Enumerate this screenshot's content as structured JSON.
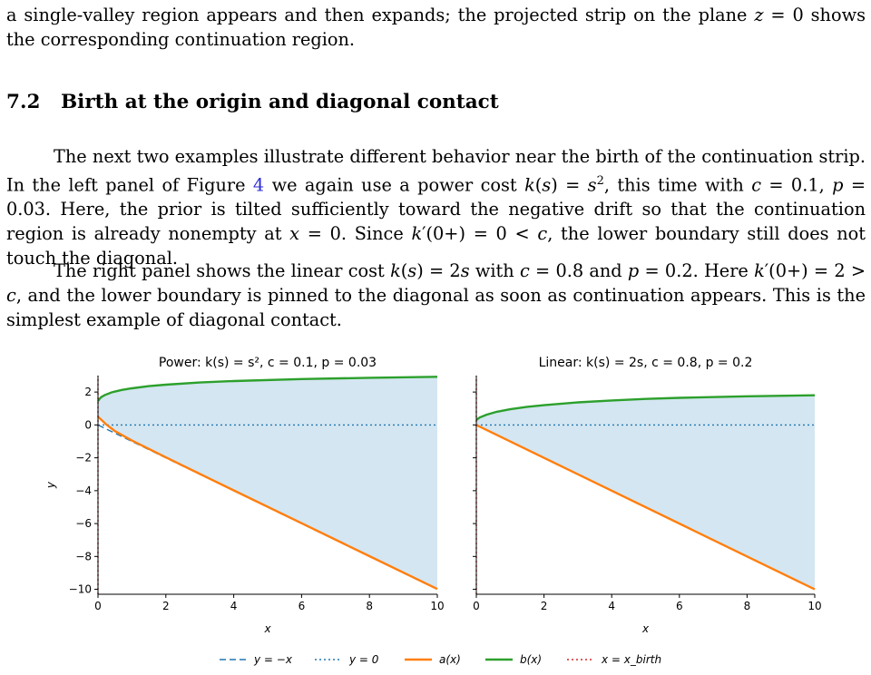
{
  "text": {
    "intro": "a single-valley region appears and then expands; the projected strip on the plane z = 0 shows the corresponding continuation region.",
    "section_number": "7.2",
    "section_title": "Birth at the origin and diagonal contact",
    "p1": "The next two examples illustrate different behavior near the birth of the continuation strip. In the left panel of Figure 4 we again use a power cost k(s) = s², this time with c = 0.1, p = 0.03. Here, the prior is tilted sufficiently toward the negative drift so that the continuation region is already nonempty at x = 0. Since k′(0+) = 0 < c, the lower boundary still does not touch the diagonal.",
    "p2": "The right panel shows the linear cost k(s) = 2s with c = 0.8 and p = 0.2. Here k′(0+) = 2 > c, and the lower boundary is pinned to the diagonal as soon as continuation appears. This is the simplest example of diagonal contact."
  },
  "chart_data": [
    {
      "type": "line",
      "title": "Power: k(s) = s², c = 0.1, p = 0.03",
      "xlabel": "x",
      "ylabel": "y",
      "xlim": [
        0,
        10
      ],
      "ylim": [
        -10.3,
        3.0
      ],
      "xticks": [
        0,
        2,
        4,
        6,
        8,
        10
      ],
      "yticks": [
        2,
        0,
        -2,
        -4,
        -6,
        -8,
        -10
      ],
      "shaded_region": "between a(x) and b(x)",
      "series": [
        {
          "name": "y = −x",
          "style": "dashed",
          "color": "#1f77b4",
          "x": [
            0,
            10
          ],
          "y": [
            0,
            -10
          ]
        },
        {
          "name": "y = 0",
          "style": "dotted",
          "color": "#1f77b4",
          "x": [
            0,
            10
          ],
          "y": [
            0,
            0
          ]
        },
        {
          "name": "a(x)",
          "style": "solid",
          "color": "#ff7f0e",
          "x": [
            0,
            0.25,
            0.5,
            1,
            2,
            4,
            6,
            8,
            10
          ],
          "y": [
            0.5,
            0.02,
            -0.38,
            -0.95,
            -1.97,
            -3.98,
            -5.98,
            -7.98,
            -9.98
          ]
        },
        {
          "name": "b(x)",
          "style": "solid",
          "color": "#2ca02c",
          "x": [
            0,
            0.05,
            0.1,
            0.2,
            0.4,
            0.7,
            1,
            1.5,
            2,
            3,
            4,
            6,
            8,
            10
          ],
          "y": [
            1.45,
            1.6,
            1.7,
            1.82,
            1.98,
            2.13,
            2.23,
            2.36,
            2.45,
            2.58,
            2.67,
            2.79,
            2.87,
            2.93
          ]
        },
        {
          "name": "x = x_birth",
          "style": "dotted",
          "color": "#d62728",
          "x": [
            0,
            0
          ],
          "y": [
            -10.3,
            3.0
          ]
        }
      ]
    },
    {
      "type": "line",
      "title": "Linear: k(s) = 2s, c = 0.8, p = 0.2",
      "xlabel": "x",
      "ylabel": "",
      "xlim": [
        0,
        10
      ],
      "ylim": [
        -10.3,
        3.0
      ],
      "xticks": [
        0,
        2,
        4,
        6,
        8,
        10
      ],
      "yticks": [
        2,
        0,
        -2,
        -4,
        -6,
        -8,
        -10
      ],
      "shaded_region": "between a(x) and b(x)",
      "series": [
        {
          "name": "y = −x",
          "style": "dashed",
          "color": "#1f77b4",
          "x": [
            0,
            10
          ],
          "y": [
            0,
            -10
          ]
        },
        {
          "name": "y = 0",
          "style": "dotted",
          "color": "#1f77b4",
          "x": [
            0,
            10
          ],
          "y": [
            0,
            0
          ]
        },
        {
          "name": "a(x)",
          "style": "solid",
          "color": "#ff7f0e",
          "x": [
            0,
            10
          ],
          "y": [
            0,
            -10
          ]
        },
        {
          "name": "b(x)",
          "style": "solid",
          "color": "#2ca02c",
          "x": [
            0,
            0.1,
            0.3,
            0.6,
            1,
            1.5,
            2,
            3,
            4,
            5,
            6,
            8,
            10
          ],
          "y": [
            0.3,
            0.45,
            0.62,
            0.8,
            0.95,
            1.1,
            1.2,
            1.37,
            1.49,
            1.58,
            1.65,
            1.74,
            1.8
          ]
        },
        {
          "name": "x = x_birth",
          "style": "dotted",
          "color": "#d62728",
          "x": [
            0,
            0
          ],
          "y": [
            -10.3,
            3.0
          ]
        }
      ]
    }
  ],
  "legend": [
    {
      "label": "y = −x",
      "style": "dashed",
      "color": "#1f77b4"
    },
    {
      "label": "y = 0",
      "style": "dotted",
      "color": "#1f77b4"
    },
    {
      "label": "a(x)",
      "style": "solid",
      "color": "#ff7f0e"
    },
    {
      "label": "b(x)",
      "style": "solid",
      "color": "#2ca02c"
    },
    {
      "label": "x = x_birth",
      "style": "dotted",
      "color": "#d62728"
    }
  ],
  "colors": {
    "link": "#2a2ad6",
    "fill": "#d4e6f1"
  }
}
